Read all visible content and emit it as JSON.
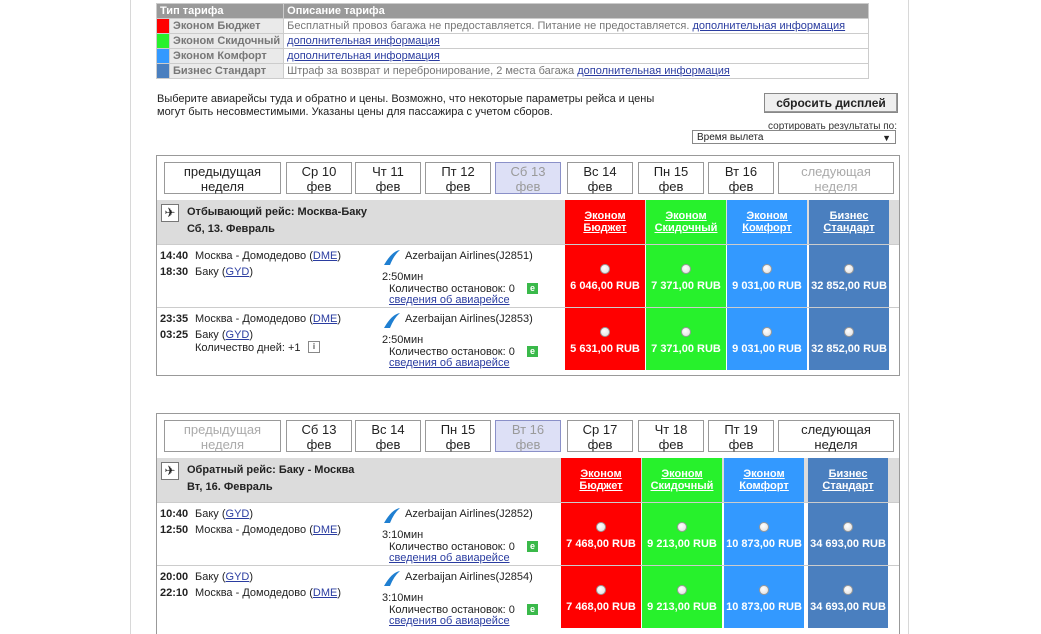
{
  "legend": {
    "col_type": "Тип тарифа",
    "col_desc": "Описание тарифа",
    "rows": [
      {
        "name": "Эконом Бюджет",
        "color": "#ff0000",
        "desc": "Бесплатный провоз багажа не предоставляется. Питание не предоставляется.",
        "link": "дополнительная информация"
      },
      {
        "name": "Эконом Скидочный",
        "color": "#27f12c",
        "desc": "",
        "link": "дополнительная информация"
      },
      {
        "name": "Эконом Комфорт",
        "color": "#3399ff",
        "desc": "",
        "link": "дополнительная информация"
      },
      {
        "name": "Бизнес Стандарт",
        "color": "#4a7fbf",
        "desc": "Штраф за возврат и перебронирование, 2 места багажа",
        "link": "дополнительная информация"
      }
    ]
  },
  "intro": "Выберите авиарейсы туда и обратно и цены. Возможно, что некоторые параметры рейса и цены могут быть несовместимыми. Указаны цены для пассажира с учетом сборов.",
  "reset_label": "сбросить дисплей",
  "sort_label": "сортировать результаты по:",
  "sort_value": "Время вылета",
  "fare_headers": [
    {
      "l1": "Эконом",
      "l2": "Бюджет"
    },
    {
      "l1": "Эконом",
      "l2": "Скидочный"
    },
    {
      "l1": "Эконом",
      "l2": "Комфорт"
    },
    {
      "l1": "Бизнес",
      "l2": "Стандарт"
    }
  ],
  "outbound": {
    "prev": {
      "l1": "предыдущая",
      "l2": "неделя"
    },
    "next": {
      "l1": "следующая",
      "l2": "неделя"
    },
    "days": [
      {
        "l1": "Ср 10",
        "l2": "фев"
      },
      {
        "l1": "Чт 11",
        "l2": "фев"
      },
      {
        "l1": "Пт 12",
        "l2": "фев"
      },
      {
        "l1": "Сб 13",
        "l2": "фев"
      },
      {
        "l1": "Вс 14",
        "l2": "фев"
      },
      {
        "l1": "Пн 15",
        "l2": "фев"
      },
      {
        "l1": "Вт 16",
        "l2": "фев"
      }
    ],
    "title": "Отбывающий рейс: Москва-Баку",
    "date": "Сб, 13. Февраль",
    "flights": [
      {
        "dep_time": "14:40",
        "dep_city": "Москва - Домодедово",
        "dep_code": "DME",
        "arr_time": "18:30",
        "arr_city": "Баку",
        "arr_code": "GYD",
        "airline": "Azerbaijan Airlines(J2851)",
        "duration": "2:50мин",
        "stops": "Количество остановок: 0",
        "info": "сведения об авиарейсе",
        "extra": "",
        "prices": [
          "6 046,00 RUB",
          "7 371,00 RUB",
          "9 031,00 RUB",
          "32 852,00 RUB"
        ]
      },
      {
        "dep_time": "23:35",
        "dep_city": "Москва - Домодедово",
        "dep_code": "DME",
        "arr_time": "03:25",
        "arr_city": "Баку",
        "arr_code": "GYD",
        "airline": "Azerbaijan Airlines(J2853)",
        "duration": "2:50мин",
        "stops": "Количество остановок: 0",
        "info": "сведения об авиарейсе",
        "extra": "Количество дней: +1",
        "prices": [
          "5 631,00 RUB",
          "7 371,00 RUB",
          "9 031,00 RUB",
          "32 852,00 RUB"
        ]
      }
    ]
  },
  "inbound": {
    "prev": {
      "l1": "предыдущая",
      "l2": "неделя"
    },
    "next": {
      "l1": "следующая",
      "l2": "неделя"
    },
    "days": [
      {
        "l1": "Сб 13",
        "l2": "фев"
      },
      {
        "l1": "Вс 14",
        "l2": "фев"
      },
      {
        "l1": "Пн 15",
        "l2": "фев"
      },
      {
        "l1": "Вт 16",
        "l2": "фев"
      },
      {
        "l1": "Ср 17",
        "l2": "фев"
      },
      {
        "l1": "Чт 18",
        "l2": "фев"
      },
      {
        "l1": "Пт 19",
        "l2": "фев"
      }
    ],
    "title": "Обратный рейс: Баку - Москва",
    "date": "Вт, 16. Февраль",
    "flights": [
      {
        "dep_time": "10:40",
        "dep_city": "Баку",
        "dep_code": "GYD",
        "arr_time": "12:50",
        "arr_city": "Москва - Домодедово",
        "arr_code": "DME",
        "airline": "Azerbaijan Airlines(J2852)",
        "duration": "3:10мин",
        "stops": "Количество остановок: 0",
        "info": "сведения об авиарейсе",
        "extra": "",
        "prices": [
          "7 468,00 RUB",
          "9 213,00 RUB",
          "10 873,00 RUB",
          "34 693,00 RUB"
        ]
      },
      {
        "dep_time": "20:00",
        "dep_city": "Баку",
        "dep_code": "GYD",
        "arr_time": "22:10",
        "arr_city": "Москва - Домодедово",
        "arr_code": "DME",
        "airline": "Azerbaijan Airlines(J2854)",
        "duration": "3:10мин",
        "stops": "Количество остановок: 0",
        "info": "сведения об авиарейсе",
        "extra": "",
        "prices": [
          "7 468,00 RUB",
          "9 213,00 RUB",
          "10 873,00 RUB",
          "34 693,00 RUB"
        ]
      }
    ]
  }
}
